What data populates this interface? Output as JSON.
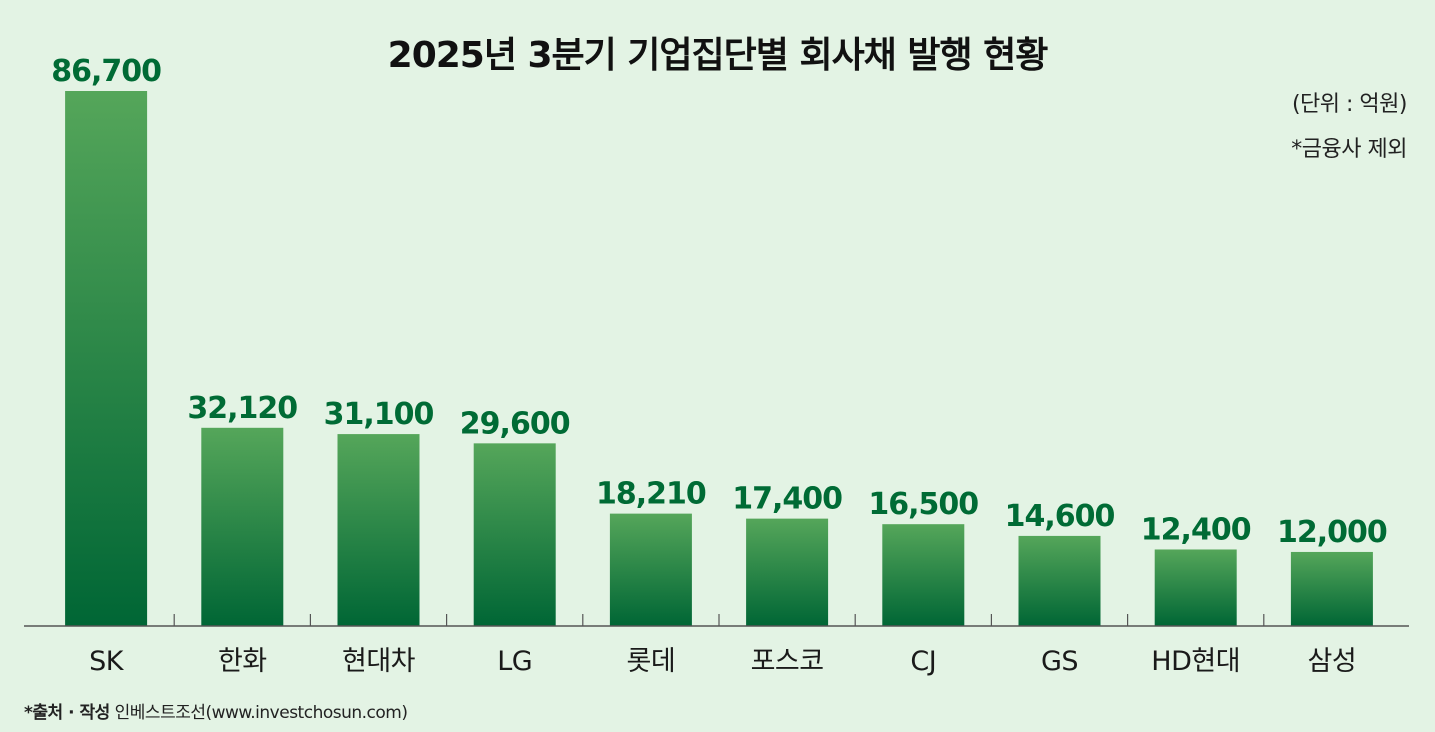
{
  "chart_data": {
    "type": "bar",
    "title": "2025년 3분기 기업집단별 회사채 발행 현황",
    "unit_note": "(단위 : 억원)",
    "exclusion_note": "*금융사 제외",
    "categories": [
      "SK",
      "한화",
      "현대차",
      "LG",
      "롯데",
      "포스코",
      "CJ",
      "GS",
      "HD현대",
      "삼성"
    ],
    "values": [
      86700,
      32120,
      31100,
      29600,
      18210,
      17400,
      16500,
      14600,
      12400,
      12000
    ],
    "value_labels": [
      "86,700",
      "32,120",
      "31,100",
      "29,600",
      "18,210",
      "17,400",
      "16,500",
      "14,600",
      "12,400",
      "12,000"
    ],
    "ylim": [
      0,
      86700
    ],
    "grid": false,
    "colors": {
      "bar_top": "#55a65a",
      "bar_bottom": "#006635",
      "value_label": "#006b35",
      "axis": "#555555"
    }
  },
  "source": {
    "label": "*출처 · 작성",
    "text": "인베스트조선(www.investchosun.com)"
  }
}
